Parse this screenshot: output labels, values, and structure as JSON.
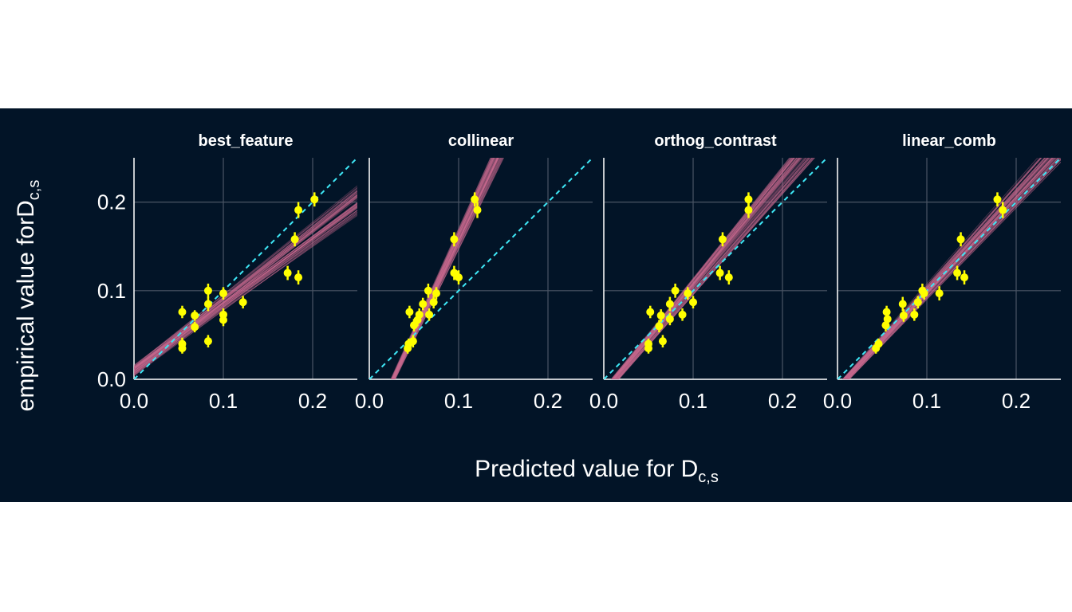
{
  "figure": {
    "background_color": "#021427",
    "grid_color": "#4a5565",
    "axis_color": "#ffffff",
    "point_color": "#ffff00",
    "fit_color": "#c96b8f",
    "identity_color": "#3ee6f5",
    "ylabel_main": "empirical value for",
    "xlabel_main": "Predicted value for ",
    "label_symbol": "D",
    "label_subscript": "c,s"
  },
  "chart_data": [
    {
      "type": "scatter",
      "title": "best_feature",
      "xlim": [
        0,
        0.25
      ],
      "ylim": [
        0,
        0.25
      ],
      "ticks": [
        0,
        0.1,
        0.2
      ],
      "tick_labels": [
        "0.0",
        "0.1",
        "0.2"
      ],
      "identity_line": true,
      "fit": {
        "intercept": 0.01,
        "slope": 0.76,
        "spread_intercept": 0.006,
        "spread_slope": 0.06
      },
      "points": [
        {
          "x": 0.054,
          "y": 0.076,
          "err": 0.007
        },
        {
          "x": 0.054,
          "y": 0.04,
          "err": 0.007
        },
        {
          "x": 0.054,
          "y": 0.035,
          "err": 0.006
        },
        {
          "x": 0.068,
          "y": 0.072,
          "err": 0.006
        },
        {
          "x": 0.068,
          "y": 0.059,
          "err": 0.006
        },
        {
          "x": 0.083,
          "y": 0.1,
          "err": 0.008
        },
        {
          "x": 0.083,
          "y": 0.085,
          "err": 0.008
        },
        {
          "x": 0.083,
          "y": 0.043,
          "err": 0.007
        },
        {
          "x": 0.1,
          "y": 0.097,
          "err": 0.007
        },
        {
          "x": 0.1,
          "y": 0.073,
          "err": 0.007
        },
        {
          "x": 0.1,
          "y": 0.067,
          "err": 0.007
        },
        {
          "x": 0.122,
          "y": 0.087,
          "err": 0.007
        },
        {
          "x": 0.172,
          "y": 0.12,
          "err": 0.008
        },
        {
          "x": 0.18,
          "y": 0.158,
          "err": 0.008
        },
        {
          "x": 0.184,
          "y": 0.191,
          "err": 0.009
        },
        {
          "x": 0.184,
          "y": 0.115,
          "err": 0.008
        },
        {
          "x": 0.202,
          "y": 0.203,
          "err": 0.008
        }
      ]
    },
    {
      "type": "scatter",
      "title": "collinear",
      "xlim": [
        0,
        0.25
      ],
      "ylim": [
        0,
        0.25
      ],
      "ticks": [
        0,
        0.1,
        0.2
      ],
      "tick_labels": [
        "0.0",
        "0.1",
        "0.2"
      ],
      "identity_line": true,
      "fit": {
        "intercept": -0.057,
        "slope": 2.15,
        "spread_intercept": 0.004,
        "spread_slope": 0.1
      },
      "points": [
        {
          "x": 0.043,
          "y": 0.035,
          "err": 0.006
        },
        {
          "x": 0.044,
          "y": 0.04,
          "err": 0.006
        },
        {
          "x": 0.045,
          "y": 0.076,
          "err": 0.007
        },
        {
          "x": 0.049,
          "y": 0.043,
          "err": 0.007
        },
        {
          "x": 0.05,
          "y": 0.061,
          "err": 0.007
        },
        {
          "x": 0.054,
          "y": 0.067,
          "err": 0.007
        },
        {
          "x": 0.056,
          "y": 0.073,
          "err": 0.007
        },
        {
          "x": 0.06,
          "y": 0.085,
          "err": 0.007
        },
        {
          "x": 0.066,
          "y": 0.1,
          "err": 0.008
        },
        {
          "x": 0.067,
          "y": 0.073,
          "err": 0.007
        },
        {
          "x": 0.072,
          "y": 0.087,
          "err": 0.007
        },
        {
          "x": 0.075,
          "y": 0.097,
          "err": 0.007
        },
        {
          "x": 0.095,
          "y": 0.12,
          "err": 0.008
        },
        {
          "x": 0.095,
          "y": 0.158,
          "err": 0.008
        },
        {
          "x": 0.1,
          "y": 0.115,
          "err": 0.008
        },
        {
          "x": 0.118,
          "y": 0.203,
          "err": 0.008
        },
        {
          "x": 0.121,
          "y": 0.191,
          "err": 0.009
        }
      ]
    },
    {
      "type": "scatter",
      "title": "orthog_contrast",
      "xlim": [
        0,
        0.25
      ],
      "ylim": [
        0,
        0.25
      ],
      "ticks": [
        0,
        0.1,
        0.2
      ],
      "tick_labels": [
        "0.0",
        "0.1",
        "0.2"
      ],
      "identity_line": true,
      "fit": {
        "intercept": -0.015,
        "slope": 1.2,
        "spread_intercept": 0.005,
        "spread_slope": 0.07
      },
      "points": [
        {
          "x": 0.05,
          "y": 0.035,
          "err": 0.006
        },
        {
          "x": 0.05,
          "y": 0.04,
          "err": 0.006
        },
        {
          "x": 0.052,
          "y": 0.076,
          "err": 0.007
        },
        {
          "x": 0.062,
          "y": 0.06,
          "err": 0.007
        },
        {
          "x": 0.064,
          "y": 0.072,
          "err": 0.007
        },
        {
          "x": 0.066,
          "y": 0.043,
          "err": 0.007
        },
        {
          "x": 0.074,
          "y": 0.085,
          "err": 0.008
        },
        {
          "x": 0.074,
          "y": 0.068,
          "err": 0.007
        },
        {
          "x": 0.08,
          "y": 0.1,
          "err": 0.008
        },
        {
          "x": 0.088,
          "y": 0.073,
          "err": 0.007
        },
        {
          "x": 0.094,
          "y": 0.097,
          "err": 0.007
        },
        {
          "x": 0.1,
          "y": 0.087,
          "err": 0.007
        },
        {
          "x": 0.13,
          "y": 0.12,
          "err": 0.008
        },
        {
          "x": 0.133,
          "y": 0.158,
          "err": 0.008
        },
        {
          "x": 0.14,
          "y": 0.115,
          "err": 0.008
        },
        {
          "x": 0.162,
          "y": 0.203,
          "err": 0.008
        },
        {
          "x": 0.162,
          "y": 0.191,
          "err": 0.009
        }
      ]
    },
    {
      "type": "scatter",
      "title": "linear_comb",
      "xlim": [
        0,
        0.25
      ],
      "ylim": [
        0,
        0.25
      ],
      "ticks": [
        0,
        0.1,
        0.2
      ],
      "tick_labels": [
        "0.0",
        "0.1",
        "0.2"
      ],
      "identity_line": true,
      "fit": {
        "intercept": -0.01,
        "slope": 1.09,
        "spread_intercept": 0.004,
        "spread_slope": 0.06
      },
      "points": [
        {
          "x": 0.043,
          "y": 0.035,
          "err": 0.006
        },
        {
          "x": 0.046,
          "y": 0.04,
          "err": 0.006
        },
        {
          "x": 0.054,
          "y": 0.061,
          "err": 0.007
        },
        {
          "x": 0.055,
          "y": 0.076,
          "err": 0.007
        },
        {
          "x": 0.056,
          "y": 0.068,
          "err": 0.007
        },
        {
          "x": 0.073,
          "y": 0.085,
          "err": 0.008
        },
        {
          "x": 0.074,
          "y": 0.072,
          "err": 0.007
        },
        {
          "x": 0.086,
          "y": 0.073,
          "err": 0.007
        },
        {
          "x": 0.09,
          "y": 0.087,
          "err": 0.007
        },
        {
          "x": 0.095,
          "y": 0.1,
          "err": 0.008
        },
        {
          "x": 0.097,
          "y": 0.097,
          "err": 0.007
        },
        {
          "x": 0.114,
          "y": 0.097,
          "err": 0.008
        },
        {
          "x": 0.134,
          "y": 0.12,
          "err": 0.008
        },
        {
          "x": 0.138,
          "y": 0.158,
          "err": 0.008
        },
        {
          "x": 0.142,
          "y": 0.115,
          "err": 0.008
        },
        {
          "x": 0.179,
          "y": 0.203,
          "err": 0.008
        },
        {
          "x": 0.185,
          "y": 0.191,
          "err": 0.009
        }
      ]
    }
  ]
}
